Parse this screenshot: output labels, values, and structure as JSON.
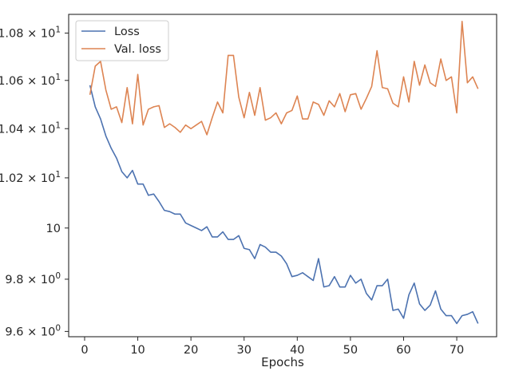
{
  "chart_data": {
    "type": "line",
    "title": "",
    "xlabel": "Epochs",
    "ylabel": "",
    "xlim": [
      -3,
      77.5
    ],
    "ylim": [
      9.58,
      10.88
    ],
    "y_scale": "log",
    "grid": false,
    "legend_position": "top-left",
    "x_ticks": [
      0,
      10,
      20,
      30,
      40,
      50,
      60,
      70
    ],
    "x_tick_labels": [
      "0",
      "10",
      "20",
      "30",
      "40",
      "50",
      "60",
      "70"
    ],
    "y_ticks": [
      {
        "value": 9.6,
        "base": "9.6",
        "exp": "0"
      },
      {
        "value": 9.8,
        "base": "9.8",
        "exp": "0"
      },
      {
        "value": 10,
        "base": "10",
        "exp": ""
      },
      {
        "value": 10.2,
        "base": "1.02",
        "exp": "1"
      },
      {
        "value": 10.4,
        "base": "1.04",
        "exp": "1"
      },
      {
        "value": 10.6,
        "base": "1.06",
        "exp": "1"
      },
      {
        "value": 10.8,
        "base": "1.08",
        "exp": "1"
      }
    ],
    "x": [
      1,
      2,
      3,
      4,
      5,
      6,
      7,
      8,
      9,
      10,
      11,
      12,
      13,
      14,
      15,
      16,
      17,
      18,
      19,
      20,
      21,
      22,
      23,
      24,
      25,
      26,
      27,
      28,
      29,
      30,
      31,
      32,
      33,
      34,
      35,
      36,
      37,
      38,
      39,
      40,
      41,
      42,
      43,
      44,
      45,
      46,
      47,
      48,
      49,
      50,
      51,
      52,
      53,
      54,
      55,
      56,
      57,
      58,
      59,
      60,
      61,
      62,
      63,
      64,
      65,
      66,
      67,
      68,
      69,
      70,
      71,
      72,
      73,
      74
    ],
    "series": [
      {
        "name": "Loss",
        "color": "#4c72b0",
        "values": [
          10.58,
          10.49,
          10.44,
          10.37,
          10.32,
          10.28,
          10.225,
          10.2,
          10.23,
          10.175,
          10.175,
          10.13,
          10.135,
          10.105,
          10.07,
          10.065,
          10.055,
          10.055,
          10.02,
          10.01,
          10.0,
          9.99,
          10.005,
          9.965,
          9.965,
          9.985,
          9.955,
          9.955,
          9.97,
          9.92,
          9.915,
          9.88,
          9.935,
          9.925,
          9.905,
          9.905,
          9.89,
          9.86,
          9.81,
          9.815,
          9.825,
          9.81,
          9.795,
          9.88,
          9.77,
          9.775,
          9.81,
          9.77,
          9.77,
          9.815,
          9.785,
          9.8,
          9.745,
          9.72,
          9.775,
          9.775,
          9.8,
          9.68,
          9.685,
          9.65,
          9.74,
          9.785,
          9.705,
          9.68,
          9.7,
          9.755,
          9.685,
          9.66,
          9.66,
          9.63,
          9.66,
          9.665,
          9.675,
          9.63
        ]
      },
      {
        "name": "Val. loss",
        "color": "#dd8452",
        "values": [
          10.54,
          10.66,
          10.68,
          10.56,
          10.48,
          10.49,
          10.425,
          10.57,
          10.42,
          10.625,
          10.415,
          10.48,
          10.49,
          10.495,
          10.405,
          10.42,
          10.405,
          10.385,
          10.415,
          10.4,
          10.415,
          10.43,
          10.375,
          10.445,
          10.51,
          10.465,
          10.705,
          10.705,
          10.53,
          10.445,
          10.55,
          10.455,
          10.57,
          10.435,
          10.445,
          10.465,
          10.42,
          10.465,
          10.475,
          10.535,
          10.44,
          10.44,
          10.51,
          10.5,
          10.455,
          10.515,
          10.49,
          10.545,
          10.47,
          10.54,
          10.545,
          10.48,
          10.525,
          10.575,
          10.725,
          10.57,
          10.565,
          10.505,
          10.49,
          10.615,
          10.51,
          10.68,
          10.58,
          10.665,
          10.59,
          10.575,
          10.69,
          10.6,
          10.615,
          10.465,
          10.85,
          10.59,
          10.615,
          10.565
        ]
      }
    ]
  }
}
